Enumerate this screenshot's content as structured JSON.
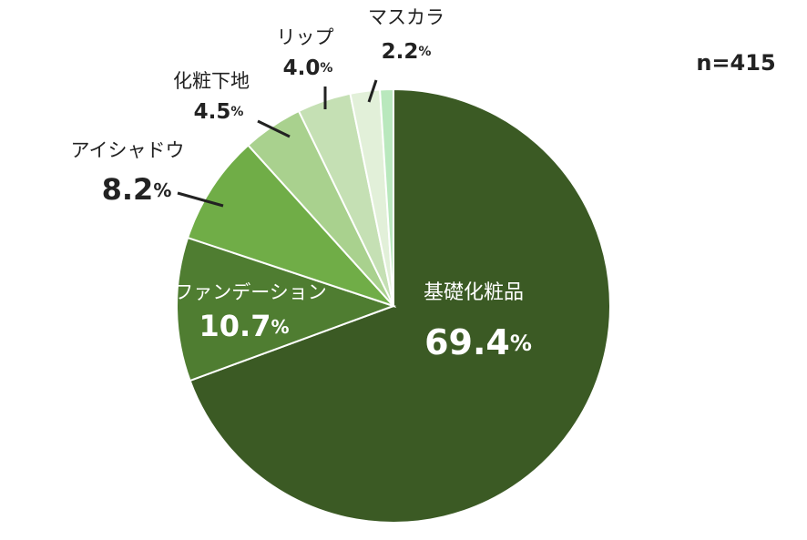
{
  "chart_data": {
    "type": "pie",
    "annotations": [
      "n=415"
    ],
    "categories": [
      "基礎化粧品",
      "ファンデーション",
      "アイシャドウ",
      "化粧下地",
      "リップ",
      "マスカラ",
      null
    ],
    "values": [
      69.4,
      10.7,
      8.2,
      4.5,
      4.0,
      2.2,
      1.0
    ],
    "value_labels": [
      "69.4%",
      "10.7%",
      "8.2%",
      "4.5%",
      "4.0%",
      "2.2%",
      null
    ],
    "colors": [
      "#3b5a24",
      "#4f7d31",
      "#70ad47",
      "#a9d18e",
      "#c5e0b4",
      "#e2f0d9",
      "#b9e8bd"
    ]
  }
}
